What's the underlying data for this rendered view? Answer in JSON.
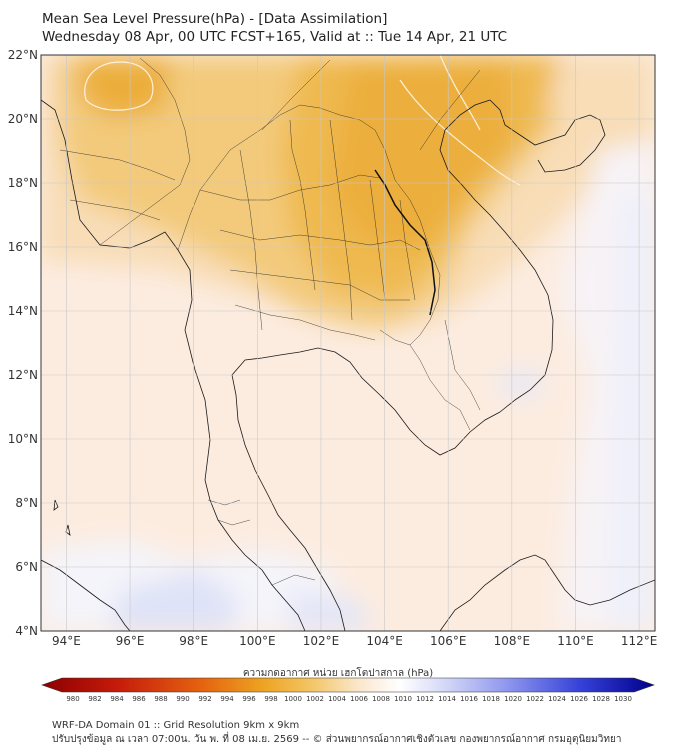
{
  "header": {
    "title": "Mean Sea Level Pressure(hPa) - [Data Assimilation]",
    "subtitle": "Wednesday 08 Apr, 00 UTC FCST+165, Valid at :: Tue 14 Apr, 21 UTC"
  },
  "map": {
    "lat_labels": [
      "22°N",
      "20°N",
      "18°N",
      "16°N",
      "14°N",
      "12°N",
      "10°N",
      "8°N",
      "6°N",
      "4°N"
    ],
    "lon_labels": [
      "94°E",
      "96°E",
      "98°E",
      "100°E",
      "102°E",
      "104°E",
      "106°E",
      "108°E",
      "110°E",
      "112°E"
    ],
    "lat_range": [
      4,
      22
    ],
    "lon_range": [
      93.2,
      112.5
    ],
    "grid": true
  },
  "colorbar": {
    "label": "ความกดอากาศ หน่วย เฮกโตปาสกาล (hPa)",
    "ticks": [
      "980",
      "982",
      "984",
      "986",
      "988",
      "990",
      "992",
      "994",
      "996",
      "998",
      "1000",
      "1002",
      "1004",
      "1006",
      "1008",
      "1010",
      "1012",
      "1014",
      "1016",
      "1018",
      "1020",
      "1022",
      "1024",
      "1026",
      "1028",
      "1030"
    ],
    "colors": {
      "low_end": "#8b0000",
      "mid_low": "#e69a1a",
      "neutral": "#ffffff",
      "high_end": "#00008b"
    }
  },
  "footer": {
    "line1": "WRF-DA Domain 01 :: Grid Resolution 9km x 9km",
    "line2": "ปรับปรุงข้อมูล ณ เวลา 07:00น. วัน พ. ที่ 08 เม.ย. 2569 -- © ส่วนพยากรณ์อากาศเชิงตัวเลข กองพยากรณ์อากาศ กรมอุตุนิยมวิทยา"
  }
}
